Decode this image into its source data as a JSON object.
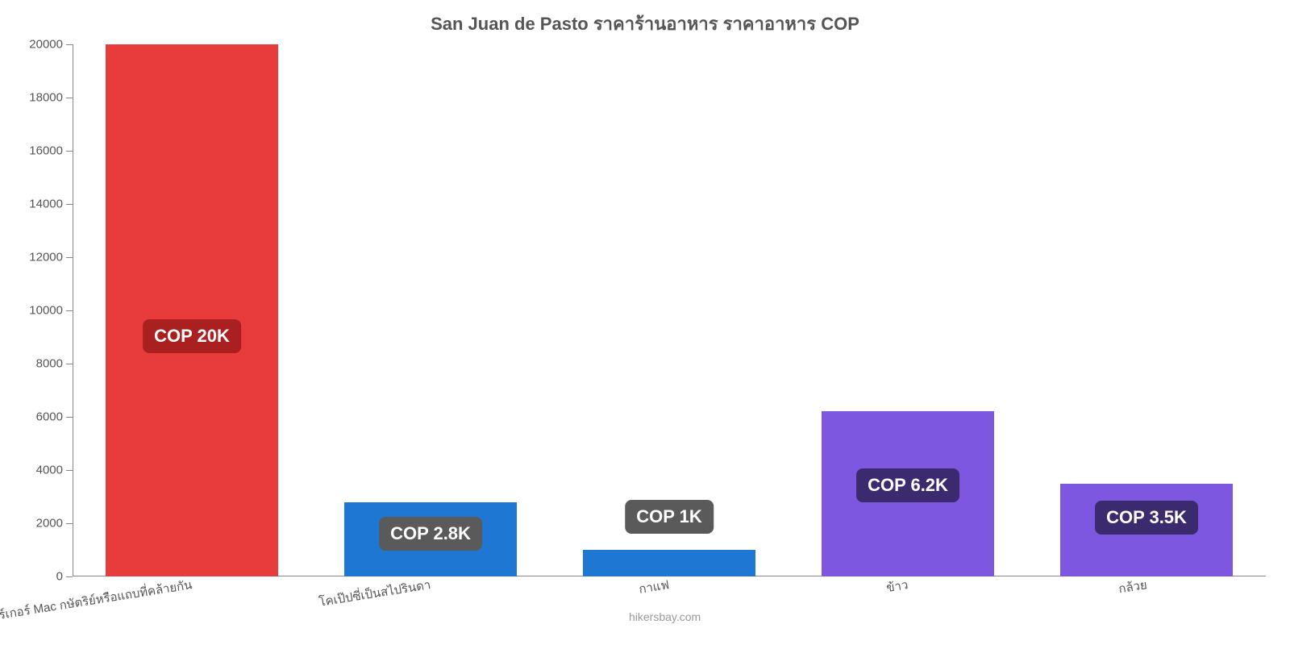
{
  "chart": {
    "type": "bar",
    "title": "San Juan de Pasto ราคาร้านอาหาร ราคาอาหาร COP",
    "title_fontsize": 22,
    "title_color": "#555555",
    "background_color": "#ffffff",
    "axis_color": "#888888",
    "tick_label_color": "#555555",
    "tick_fontsize": 15,
    "ylim": [
      0,
      20000
    ],
    "ytick_step": 2000,
    "yticks": [
      0,
      2000,
      4000,
      6000,
      8000,
      10000,
      12000,
      14000,
      16000,
      18000,
      20000
    ],
    "categories": [
      "เบอร์เกอร์ Mac กษัตริย์หรือแถบที่คล้ายกัน",
      "โคเป๊ปซี่เป็นสไปรินดา",
      "กาแฟ",
      "ข้าว",
      "กล้วย"
    ],
    "values": [
      20000,
      2800,
      1000,
      6200,
      3500
    ],
    "bar_colors": [
      "#e73b3c",
      "#1f77d4",
      "#1f77d4",
      "#7e57e0",
      "#7e57e0"
    ],
    "bar_width": 0.72,
    "data_labels": [
      "COP 20K",
      "COP 2.8K",
      "COP 1K",
      "COP 6.2K",
      "COP 3.5K"
    ],
    "data_label_bg": [
      "#aa1f1f",
      "#5a5a5a",
      "#5a5a5a",
      "#3b2a6e",
      "#3b2a6e"
    ],
    "data_label_fontsize": 22,
    "x_label_fontsize": 15,
    "x_label_rotation_deg": -9,
    "watermark": "hikersbay.com",
    "watermark_color": "#999999",
    "watermark_fontsize": 14
  }
}
